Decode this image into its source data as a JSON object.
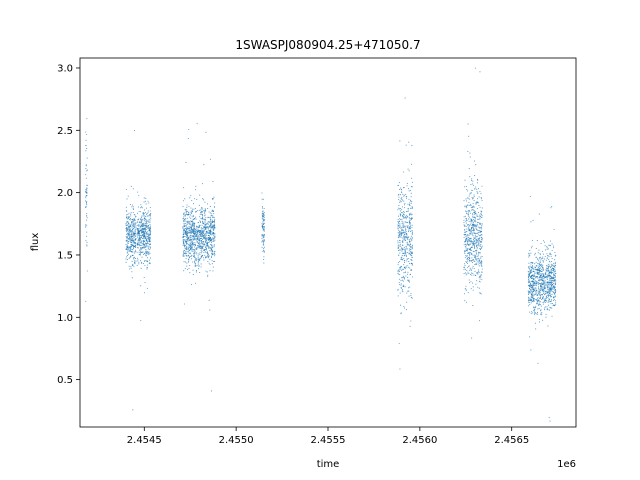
{
  "chart_data": {
    "type": "scatter",
    "title": "1SWASPJ080904.25+471050.7",
    "xlabel": "time",
    "ylabel": "flux",
    "x_offset_label": "1e6",
    "xlim": [
      2454150,
      2456850
    ],
    "ylim": [
      0.12,
      3.08
    ],
    "x_ticks": [
      2454500,
      2455000,
      2455500,
      2456000,
      2456500
    ],
    "x_tick_labels": [
      "2.4545",
      "2.4550",
      "2.4555",
      "2.4560",
      "2.4565"
    ],
    "y_ticks": [
      0.5,
      1.0,
      1.5,
      2.0,
      2.5,
      3.0
    ],
    "y_tick_labels": [
      "0.5",
      "1.0",
      "1.5",
      "2.0",
      "2.5",
      "3.0"
    ],
    "grid": false,
    "marker_color": "#1f77b4",
    "clusters": [
      {
        "x_range": [
          2454180,
          2454190
        ],
        "y_center": 2.05,
        "y_spread": 0.3
      },
      {
        "x_range": [
          2454400,
          2454455
        ],
        "y_center": 1.65,
        "y_spread": 0.1
      },
      {
        "x_range": [
          2454460,
          2454535
        ],
        "y_center": 1.65,
        "y_spread": 0.11
      },
      {
        "x_range": [
          2454710,
          2454885
        ],
        "y_center": 1.65,
        "y_spread": 0.12
      },
      {
        "x_range": [
          2455140,
          2455155
        ],
        "y_center": 1.7,
        "y_spread": 0.1
      },
      {
        "x_range": [
          2455880,
          2455960
        ],
        "y_center": 1.65,
        "y_spread": 0.22
      },
      {
        "x_range": [
          2456240,
          2456340
        ],
        "y_center": 1.65,
        "y_spread": 0.2
      },
      {
        "x_range": [
          2456590,
          2456740
        ],
        "y_center": 1.28,
        "y_spread": 0.12
      }
    ]
  }
}
